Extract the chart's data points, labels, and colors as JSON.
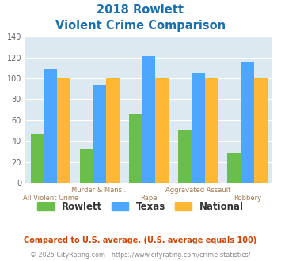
{
  "title_line1": "2018 Rowlett",
  "title_line2": "Violent Crime Comparison",
  "rowlett": [
    47,
    32,
    66,
    51,
    29
  ],
  "texas": [
    109,
    93,
    121,
    105,
    115
  ],
  "national": [
    100,
    100,
    100,
    100,
    100
  ],
  "rowlett_color": "#6abf4b",
  "texas_color": "#4da6ff",
  "national_color": "#ffb833",
  "bg_color": "#dce9f0",
  "title_color": "#1a6fad",
  "ylim": [
    0,
    140
  ],
  "yticks": [
    0,
    20,
    40,
    60,
    80,
    100,
    120,
    140
  ],
  "xlabel_top": [
    "",
    "Murder & Mans...",
    "",
    "Aggravated Assault",
    ""
  ],
  "xlabel_bot": [
    "All Violent Crime",
    "",
    "Rape",
    "",
    "Robbery"
  ],
  "xlabel_color": "#a07850",
  "footnote1": "Compared to U.S. average. (U.S. average equals 100)",
  "footnote2": "© 2025 CityRating.com - https://www.cityrating.com/crime-statistics/",
  "footnote1_color": "#cc4400",
  "footnote2_color": "#888888",
  "grid_color": "#ffffff",
  "legend_labels": [
    "Rowlett",
    "Texas",
    "National"
  ]
}
